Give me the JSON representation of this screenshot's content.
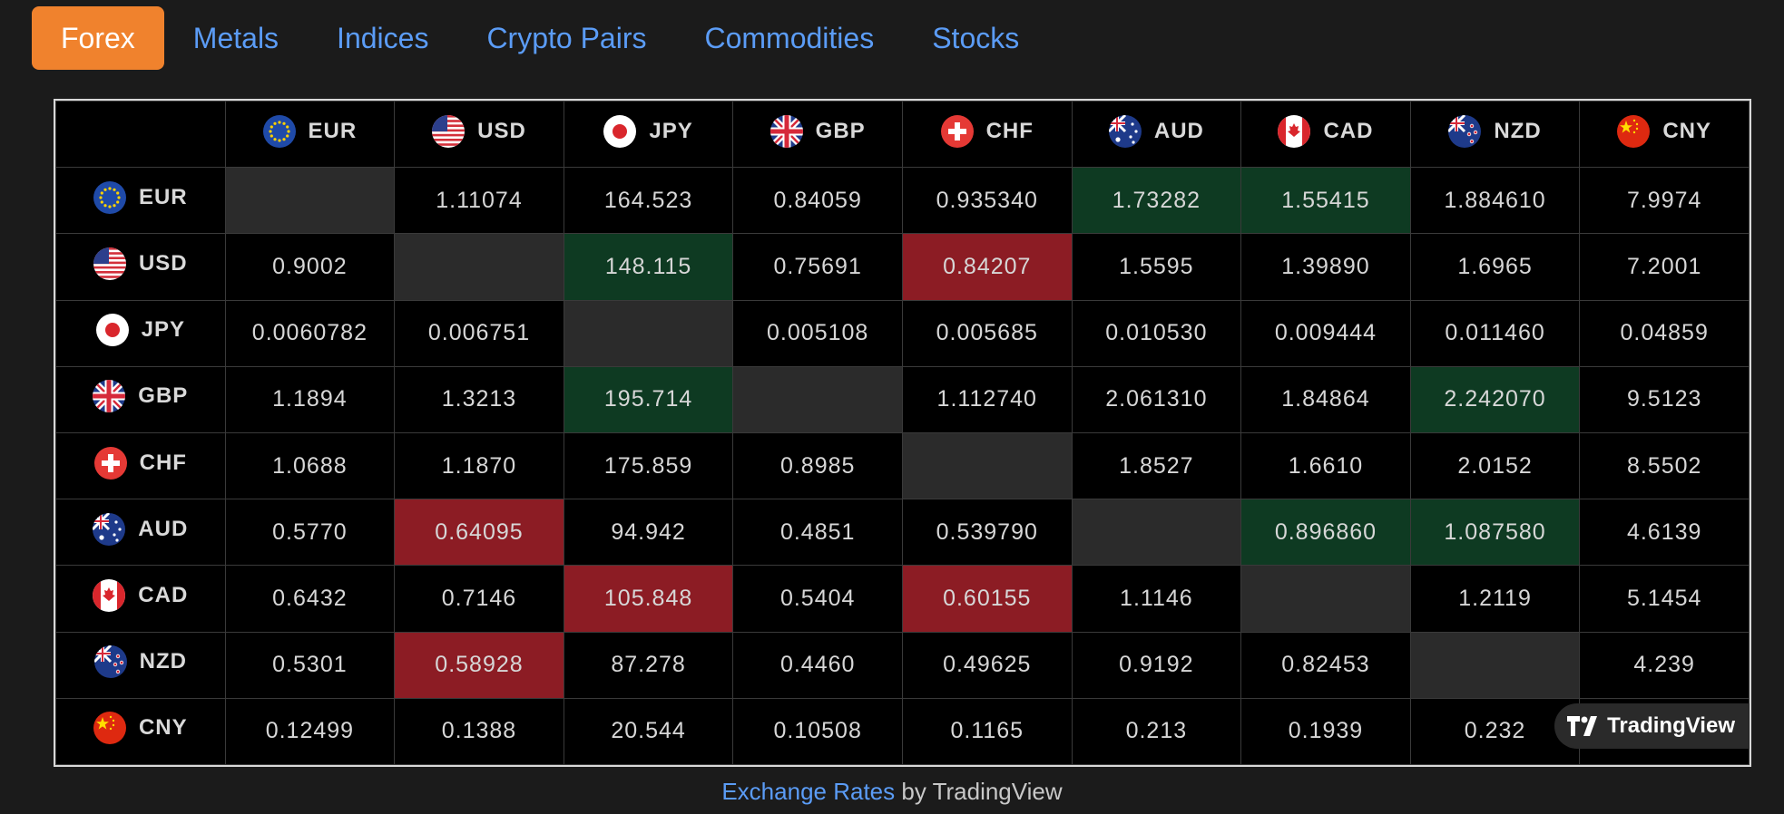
{
  "tabs": [
    "Forex",
    "Metals",
    "Indices",
    "Crypto Pairs",
    "Commodities",
    "Stocks"
  ],
  "active_tab": "Forex",
  "currencies": [
    {
      "code": "EUR",
      "flag": "eu-flag"
    },
    {
      "code": "USD",
      "flag": "us-flag"
    },
    {
      "code": "JPY",
      "flag": "jp-flag"
    },
    {
      "code": "GBP",
      "flag": "gb-flag"
    },
    {
      "code": "CHF",
      "flag": "ch-flag"
    },
    {
      "code": "AUD",
      "flag": "au-flag"
    },
    {
      "code": "CAD",
      "flag": "ca-flag"
    },
    {
      "code": "NZD",
      "flag": "nz-flag"
    },
    {
      "code": "CNY",
      "flag": "cn-flag"
    }
  ],
  "rows": [
    [
      {
        "v": "",
        "s": "empty"
      },
      {
        "v": "1.11074"
      },
      {
        "v": "164.523"
      },
      {
        "v": "0.84059"
      },
      {
        "v": "0.935340"
      },
      {
        "v": "1.73282",
        "s": "up"
      },
      {
        "v": "1.55415",
        "s": "up"
      },
      {
        "v": "1.884610"
      },
      {
        "v": "7.9974"
      }
    ],
    [
      {
        "v": "0.9002"
      },
      {
        "v": "",
        "s": "empty"
      },
      {
        "v": "148.115",
        "s": "up"
      },
      {
        "v": "0.75691"
      },
      {
        "v": "0.84207",
        "s": "down"
      },
      {
        "v": "1.5595"
      },
      {
        "v": "1.39890"
      },
      {
        "v": "1.6965"
      },
      {
        "v": "7.2001"
      }
    ],
    [
      {
        "v": "0.0060782"
      },
      {
        "v": "0.006751"
      },
      {
        "v": "",
        "s": "empty"
      },
      {
        "v": "0.005108"
      },
      {
        "v": "0.005685"
      },
      {
        "v": "0.010530"
      },
      {
        "v": "0.009444"
      },
      {
        "v": "0.011460"
      },
      {
        "v": "0.04859"
      }
    ],
    [
      {
        "v": "1.1894"
      },
      {
        "v": "1.3213"
      },
      {
        "v": "195.714",
        "s": "up"
      },
      {
        "v": "",
        "s": "empty"
      },
      {
        "v": "1.112740"
      },
      {
        "v": "2.061310"
      },
      {
        "v": "1.84864"
      },
      {
        "v": "2.242070",
        "s": "up"
      },
      {
        "v": "9.5123"
      }
    ],
    [
      {
        "v": "1.0688"
      },
      {
        "v": "1.1870"
      },
      {
        "v": "175.859"
      },
      {
        "v": "0.8985"
      },
      {
        "v": "",
        "s": "empty"
      },
      {
        "v": "1.8527"
      },
      {
        "v": "1.6610"
      },
      {
        "v": "2.0152"
      },
      {
        "v": "8.5502"
      }
    ],
    [
      {
        "v": "0.5770"
      },
      {
        "v": "0.64095",
        "s": "down"
      },
      {
        "v": "94.942"
      },
      {
        "v": "0.4851"
      },
      {
        "v": "0.539790"
      },
      {
        "v": "",
        "s": "empty"
      },
      {
        "v": "0.896860",
        "s": "up"
      },
      {
        "v": "1.087580",
        "s": "up"
      },
      {
        "v": "4.6139"
      }
    ],
    [
      {
        "v": "0.6432"
      },
      {
        "v": "0.7146"
      },
      {
        "v": "105.848",
        "s": "down"
      },
      {
        "v": "0.5404"
      },
      {
        "v": "0.60155",
        "s": "down"
      },
      {
        "v": "1.1146"
      },
      {
        "v": "",
        "s": "empty"
      },
      {
        "v": "1.2119"
      },
      {
        "v": "5.1454"
      }
    ],
    [
      {
        "v": "0.5301"
      },
      {
        "v": "0.58928",
        "s": "down"
      },
      {
        "v": "87.278"
      },
      {
        "v": "0.4460"
      },
      {
        "v": "0.49625"
      },
      {
        "v": "0.9192"
      },
      {
        "v": "0.82453"
      },
      {
        "v": "",
        "s": "empty"
      },
      {
        "v": "4.239"
      }
    ],
    [
      {
        "v": "0.12499"
      },
      {
        "v": "0.1388"
      },
      {
        "v": "20.544"
      },
      {
        "v": "0.10508"
      },
      {
        "v": "0.1165"
      },
      {
        "v": "0.213"
      },
      {
        "v": "0.1939"
      },
      {
        "v": "0.232"
      },
      {
        "v": ""
      }
    ]
  ],
  "colors": {
    "up": "#0e3a22",
    "down": "#8c1c24",
    "empty": "#2b2b2b",
    "accent": "#f0822d",
    "link": "#5b9cf6"
  },
  "badge": {
    "label": "TradingView",
    "icon": "tradingview-logo-icon"
  },
  "footer": {
    "link_text": "Exchange Rates",
    "suffix": " by TradingView"
  }
}
